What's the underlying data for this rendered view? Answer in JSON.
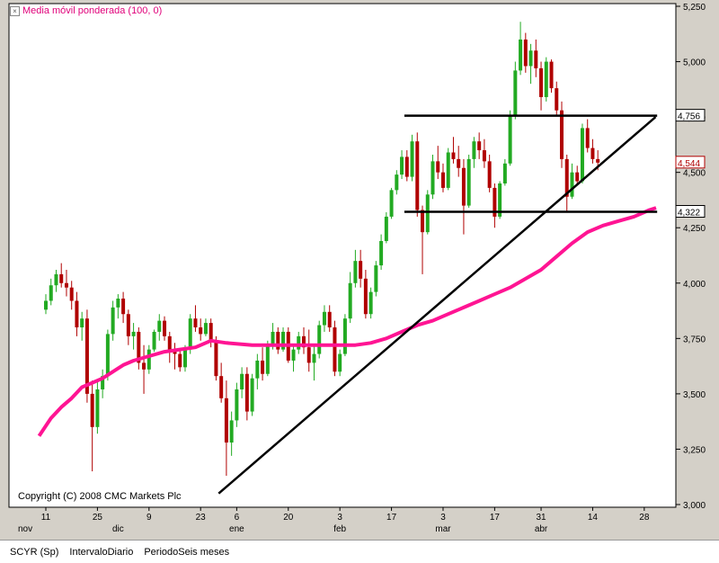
{
  "legend": {
    "label": "Media móvil ponderada (100, 0)",
    "close_glyph": "×"
  },
  "copyright": "Copyright (C) 2008 CMC Markets Plc",
  "status": {
    "symbol": "SCYR (Sp)",
    "interval": "IntervaloDiario",
    "period": "PeriodoSeis meses"
  },
  "colors": {
    "up": "#22aa22",
    "down": "#b00000",
    "ma": "#ff1493",
    "lines": "#000000",
    "plot_bg": "#ffffff"
  },
  "chart_data": {
    "type": "candlestick",
    "title": "",
    "ylim": [
      3000,
      5250
    ],
    "y_ticks": [
      3000,
      3250,
      3500,
      3750,
      4000,
      4250,
      4500,
      4750,
      5000,
      5250
    ],
    "y_tick_labels": [
      "3,000",
      "3,250",
      "3,500",
      "3,750",
      "4,000",
      "4,250",
      "4,500",
      "4,750",
      "5,000",
      "5,250"
    ],
    "x_ticks": [
      {
        "bar": 0,
        "label": "11"
      },
      {
        "bar": 10,
        "label": "25"
      },
      {
        "bar": 20,
        "label": "9"
      },
      {
        "bar": 30,
        "label": "23"
      },
      {
        "bar": 37,
        "label": "6"
      },
      {
        "bar": 47,
        "label": "20"
      },
      {
        "bar": 57,
        "label": "3"
      },
      {
        "bar": 67,
        "label": "17"
      },
      {
        "bar": 77,
        "label": "3"
      },
      {
        "bar": 87,
        "label": "17"
      },
      {
        "bar": 96,
        "label": "31"
      },
      {
        "bar": 106,
        "label": "14"
      },
      {
        "bar": 116,
        "label": "28"
      }
    ],
    "month_labels": [
      {
        "bar": -4,
        "label": "nov"
      },
      {
        "bar": 14,
        "label": "dic"
      },
      {
        "bar": 37,
        "label": "ene"
      },
      {
        "bar": 57,
        "label": "feb"
      },
      {
        "bar": 77,
        "label": "mar"
      },
      {
        "bar": 96,
        "label": "abr"
      }
    ],
    "candles": [
      [
        3880,
        3950,
        3860,
        3920
      ],
      [
        3920,
        4020,
        3900,
        3990
      ],
      [
        3990,
        4060,
        3960,
        4040
      ],
      [
        4040,
        4090,
        3980,
        4000
      ],
      [
        4000,
        4060,
        3940,
        3980
      ],
      [
        3980,
        4010,
        3880,
        3920
      ],
      [
        3920,
        3960,
        3760,
        3800
      ],
      [
        3800,
        3870,
        3740,
        3840
      ],
      [
        3840,
        3880,
        3460,
        3500
      ],
      [
        3500,
        3560,
        3150,
        3350
      ],
      [
        3350,
        3560,
        3320,
        3520
      ],
      [
        3520,
        3610,
        3480,
        3580
      ],
      [
        3580,
        3790,
        3560,
        3770
      ],
      [
        3770,
        3920,
        3740,
        3890
      ],
      [
        3890,
        3950,
        3840,
        3930
      ],
      [
        3930,
        3960,
        3820,
        3860
      ],
      [
        3860,
        3880,
        3720,
        3760
      ],
      [
        3760,
        3820,
        3700,
        3780
      ],
      [
        3780,
        3800,
        3610,
        3640
      ],
      [
        3640,
        3720,
        3500,
        3610
      ],
      [
        3610,
        3720,
        3590,
        3700
      ],
      [
        3700,
        3790,
        3690,
        3780
      ],
      [
        3780,
        3860,
        3740,
        3830
      ],
      [
        3830,
        3850,
        3740,
        3760
      ],
      [
        3760,
        3780,
        3640,
        3700
      ],
      [
        3700,
        3730,
        3610,
        3680
      ],
      [
        3680,
        3700,
        3600,
        3620
      ],
      [
        3620,
        3720,
        3600,
        3700
      ],
      [
        3700,
        3860,
        3680,
        3840
      ],
      [
        3840,
        3900,
        3780,
        3800
      ],
      [
        3800,
        3840,
        3740,
        3770
      ],
      [
        3770,
        3840,
        3760,
        3820
      ],
      [
        3820,
        3840,
        3710,
        3740
      ],
      [
        3740,
        3760,
        3560,
        3580
      ],
      [
        3580,
        3640,
        3460,
        3480
      ],
      [
        3480,
        3560,
        3130,
        3280
      ],
      [
        3280,
        3420,
        3220,
        3380
      ],
      [
        3380,
        3550,
        3350,
        3520
      ],
      [
        3520,
        3620,
        3480,
        3590
      ],
      [
        3590,
        3620,
        3380,
        3420
      ],
      [
        3420,
        3590,
        3400,
        3570
      ],
      [
        3570,
        3680,
        3520,
        3650
      ],
      [
        3650,
        3710,
        3560,
        3590
      ],
      [
        3590,
        3740,
        3580,
        3720
      ],
      [
        3720,
        3820,
        3700,
        3780
      ],
      [
        3780,
        3800,
        3680,
        3700
      ],
      [
        3700,
        3800,
        3690,
        3780
      ],
      [
        3780,
        3800,
        3640,
        3650
      ],
      [
        3650,
        3720,
        3600,
        3700
      ],
      [
        3700,
        3780,
        3680,
        3760
      ],
      [
        3760,
        3800,
        3680,
        3710
      ],
      [
        3710,
        3790,
        3600,
        3640
      ],
      [
        3640,
        3720,
        3560,
        3680
      ],
      [
        3680,
        3830,
        3660,
        3810
      ],
      [
        3810,
        3900,
        3780,
        3870
      ],
      [
        3870,
        3900,
        3780,
        3800
      ],
      [
        3800,
        3830,
        3580,
        3600
      ],
      [
        3600,
        3700,
        3580,
        3680
      ],
      [
        3680,
        3860,
        3670,
        3840
      ],
      [
        3840,
        4050,
        3820,
        4000
      ],
      [
        4000,
        4150,
        3980,
        4100
      ],
      [
        4100,
        4150,
        3980,
        4020
      ],
      [
        4020,
        4060,
        3840,
        3860
      ],
      [
        3860,
        3980,
        3840,
        3960
      ],
      [
        3960,
        4100,
        3940,
        4080
      ],
      [
        4080,
        4220,
        4060,
        4190
      ],
      [
        4190,
        4320,
        4180,
        4300
      ],
      [
        4300,
        4430,
        4290,
        4420
      ],
      [
        4420,
        4510,
        4400,
        4490
      ],
      [
        4490,
        4600,
        4470,
        4570
      ],
      [
        4570,
        4600,
        4460,
        4480
      ],
      [
        4480,
        4670,
        4460,
        4640
      ],
      [
        4640,
        4680,
        4300,
        4330
      ],
      [
        4330,
        4350,
        4040,
        4230
      ],
      [
        4230,
        4420,
        4220,
        4400
      ],
      [
        4400,
        4580,
        4380,
        4550
      ],
      [
        4550,
        4620,
        4470,
        4500
      ],
      [
        4500,
        4540,
        4410,
        4430
      ],
      [
        4430,
        4610,
        4420,
        4590
      ],
      [
        4590,
        4660,
        4540,
        4560
      ],
      [
        4560,
        4620,
        4480,
        4520
      ],
      [
        4520,
        4560,
        4220,
        4350
      ],
      [
        4350,
        4580,
        4340,
        4560
      ],
      [
        4560,
        4660,
        4520,
        4640
      ],
      [
        4640,
        4680,
        4560,
        4600
      ],
      [
        4600,
        4650,
        4520,
        4550
      ],
      [
        4550,
        4580,
        4410,
        4430
      ],
      [
        4430,
        4450,
        4250,
        4300
      ],
      [
        4300,
        4460,
        4290,
        4450
      ],
      [
        4450,
        4560,
        4440,
        4540
      ],
      [
        4540,
        4780,
        4530,
        4760
      ],
      [
        4760,
        5000,
        4740,
        4960
      ],
      [
        4960,
        5180,
        4940,
        5100
      ],
      [
        5100,
        5130,
        4950,
        4980
      ],
      [
        4980,
        5080,
        4900,
        5050
      ],
      [
        5050,
        5100,
        4930,
        4970
      ],
      [
        4970,
        5000,
        4780,
        4840
      ],
      [
        4840,
        5020,
        4820,
        5000
      ],
      [
        5000,
        5010,
        4860,
        4880
      ],
      [
        4880,
        4910,
        4760,
        4780
      ],
      [
        4780,
        4820,
        4520,
        4560
      ],
      [
        4560,
        4580,
        4320,
        4390
      ],
      [
        4390,
        4540,
        4380,
        4500
      ],
      [
        4500,
        4530,
        4440,
        4460
      ],
      [
        4460,
        4720,
        4450,
        4700
      ],
      [
        4700,
        4740,
        4590,
        4610
      ],
      [
        4610,
        4650,
        4540,
        4560
      ],
      [
        4560,
        4600,
        4510,
        4544
      ]
    ],
    "ma_points": [
      [
        -1.3,
        3310
      ],
      [
        1,
        3390
      ],
      [
        3,
        3440
      ],
      [
        5,
        3480
      ],
      [
        7,
        3530
      ],
      [
        9,
        3550
      ],
      [
        11,
        3570
      ],
      [
        13,
        3600
      ],
      [
        15,
        3630
      ],
      [
        17,
        3650
      ],
      [
        20,
        3670
      ],
      [
        23,
        3690
      ],
      [
        26,
        3700
      ],
      [
        29,
        3710
      ],
      [
        32,
        3740
      ],
      [
        35,
        3730
      ],
      [
        40,
        3720
      ],
      [
        45,
        3720
      ],
      [
        50,
        3720
      ],
      [
        55,
        3720
      ],
      [
        60,
        3720
      ],
      [
        63,
        3730
      ],
      [
        66,
        3750
      ],
      [
        69,
        3780
      ],
      [
        72,
        3810
      ],
      [
        75,
        3830
      ],
      [
        78,
        3860
      ],
      [
        81,
        3890
      ],
      [
        84,
        3920
      ],
      [
        87,
        3950
      ],
      [
        90,
        3980
      ],
      [
        93,
        4020
      ],
      [
        96,
        4060
      ],
      [
        99,
        4120
      ],
      [
        102,
        4180
      ],
      [
        105,
        4230
      ],
      [
        108,
        4260
      ],
      [
        111,
        4280
      ],
      [
        114,
        4300
      ],
      [
        117,
        4330
      ],
      [
        118.3,
        4340
      ]
    ],
    "trendline": [
      [
        33.5,
        3050
      ],
      [
        118.2,
        4750
      ]
    ],
    "resistance": {
      "from_bar": 69.5,
      "to_bar": 118.5,
      "value": 4756,
      "label": "4,756"
    },
    "support": {
      "from_bar": 69.5,
      "to_bar": 118.5,
      "value": 4322,
      "label": "4,322"
    },
    "last_price": {
      "value": 4544,
      "label": "4,544"
    }
  }
}
